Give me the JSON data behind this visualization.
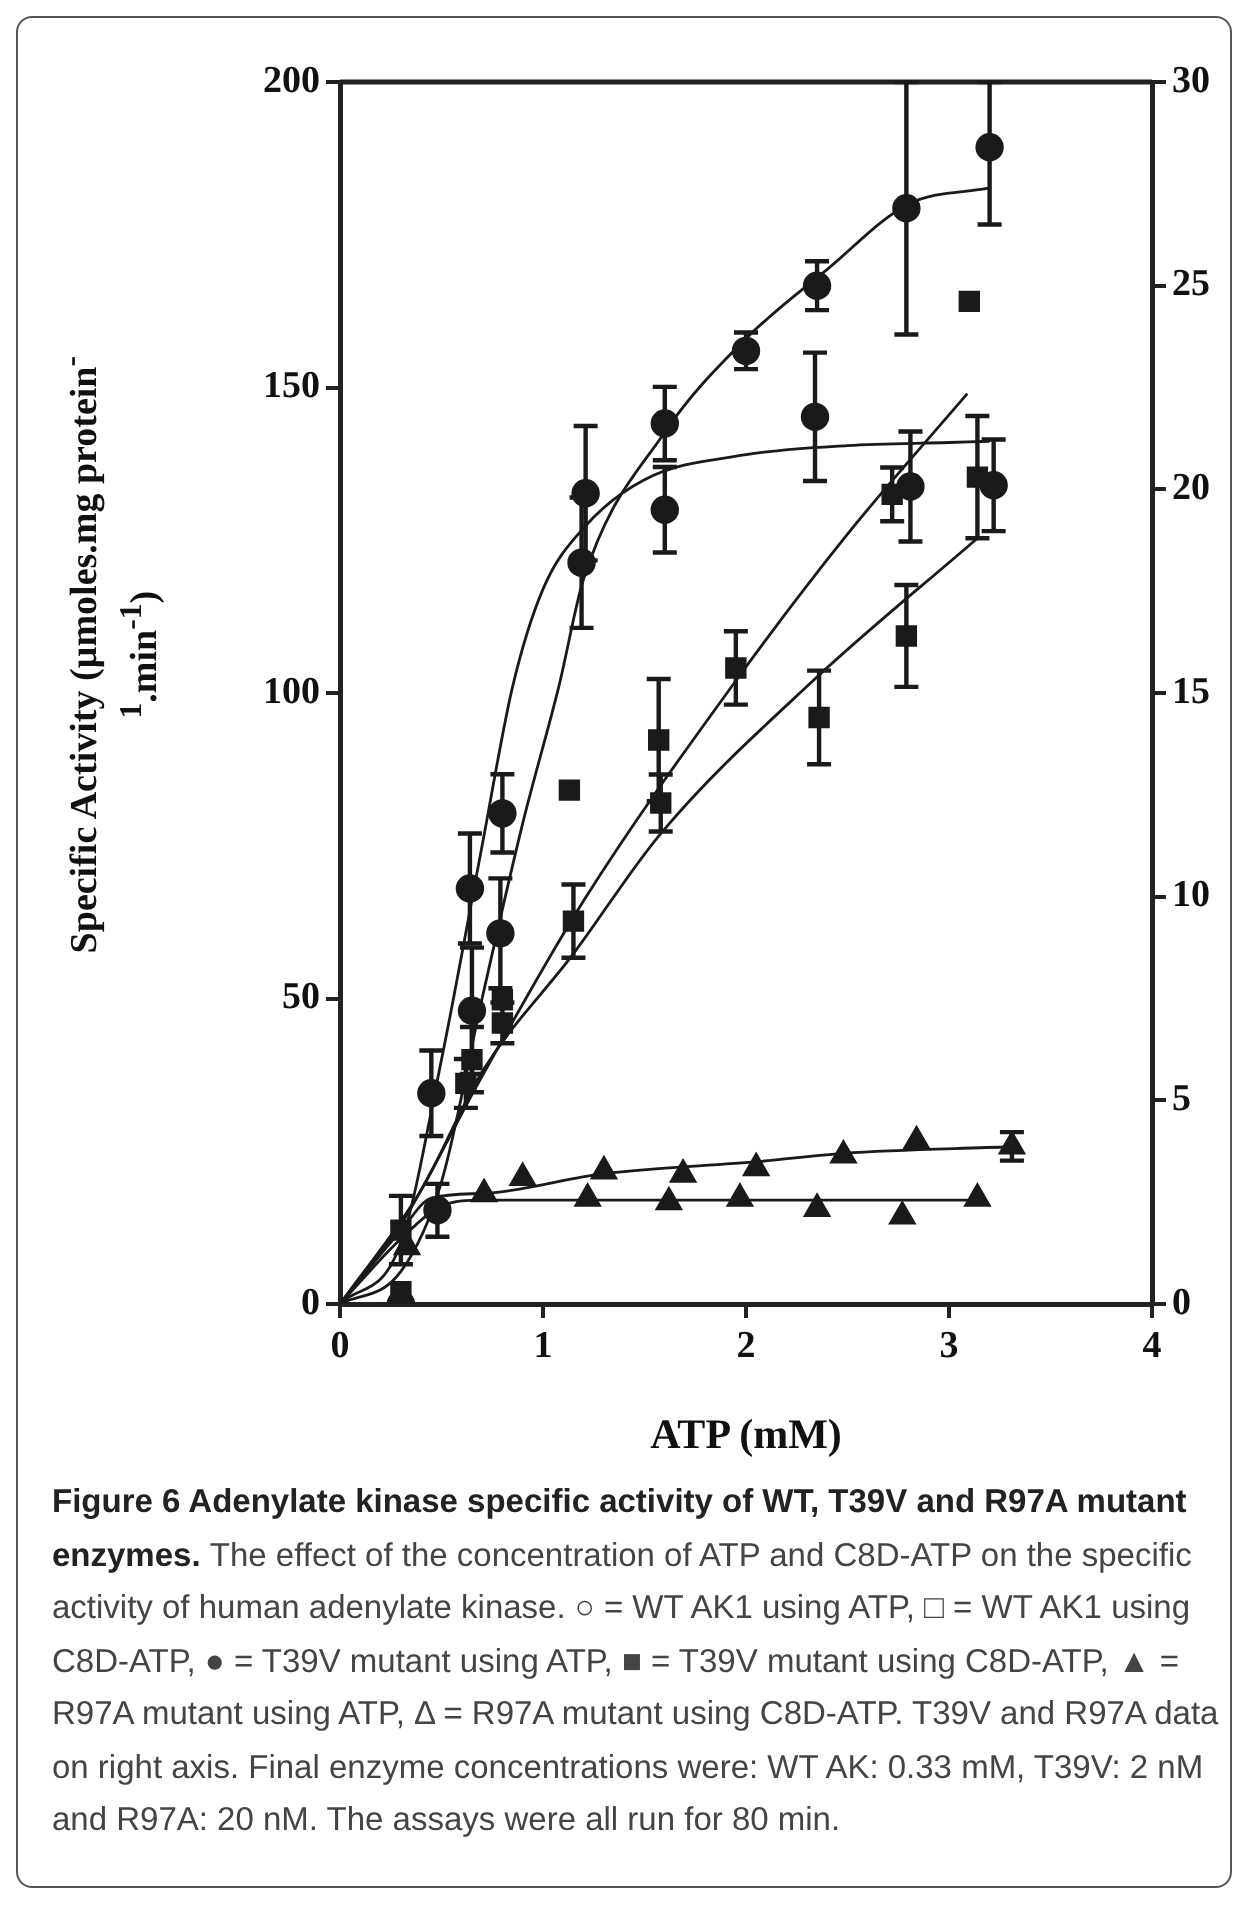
{
  "chart_data": {
    "type": "scatter",
    "xlabel": "ATP (mM)",
    "ylabel": "Specific Activity (µmoles.mg protein$^{-1}$.min$^{-1}$)",
    "xlim": [
      0,
      4
    ],
    "xticks": [
      0,
      1,
      2,
      3,
      4
    ],
    "ylim": [
      0,
      200
    ],
    "yticks": [
      0,
      50,
      100,
      150,
      200
    ],
    "y2lim": [
      0,
      30
    ],
    "y2ticks": [
      0,
      5,
      10,
      15,
      20,
      25,
      30
    ],
    "grid": false,
    "legend": false,
    "series": [
      {
        "type": "scatter",
        "marker": "circle",
        "color": "#1a1a1a",
        "x": [
          0.45,
          0.64,
          0.8,
          1.21,
          1.6,
          2.34,
          2.81,
          3.22
        ],
        "values": [
          34.5,
          68,
          80.3,
          132.7,
          144.1,
          145.2,
          133.8,
          134
        ],
        "errors": [
          7,
          9,
          6.4,
          11,
          6,
          10.5,
          9,
          7.5
        ]
      },
      {
        "type": "scatter",
        "marker": "square",
        "color": "#1a1a1a",
        "x": [
          0.3,
          0.45,
          0.62,
          0.8,
          1.13,
          1.57,
          1.95,
          2.72,
          3.1
        ],
        "values": [
          12.1,
          null,
          36.1,
          49.8,
          84.1,
          92.3,
          104.1,
          132.5,
          164.1
        ],
        "errors": [
          5.6,
          null,
          4,
          null,
          null,
          10,
          6,
          4.4,
          null
        ]
      },
      {
        "type": "scatter",
        "marker": "circle",
        "axis": "y2",
        "color": "#1a1a1a",
        "x": [
          0.3,
          0.48,
          0.65,
          0.79,
          1.19,
          1.6,
          2.0,
          2.35,
          2.79,
          3.2
        ],
        "values": [
          0,
          2.3,
          7.2,
          9.1,
          18.2,
          19.5,
          23.4,
          25.0,
          26.9,
          28.4
        ],
        "errors": [
          null,
          0.65,
          1.55,
          1.35,
          1.6,
          1.05,
          0.45,
          0.6,
          3.1,
          [
            26.5,
            30
          ]
        ]
      },
      {
        "type": "scatter",
        "marker": "square",
        "axis": "y2",
        "color": "#1a1a1a",
        "x": [
          0.3,
          0.46,
          0.65,
          0.8,
          1.15,
          1.58,
          2.36,
          2.79,
          3.14
        ],
        "values": [
          0.3,
          null,
          6.0,
          6.9,
          9.4,
          12.3,
          14.4,
          16.4,
          20.3
        ],
        "errors": [
          null,
          null,
          0.8,
          0.5,
          0.9,
          0.7,
          1.15,
          1.25,
          1.5
        ]
      },
      {
        "type": "scatter",
        "marker": "triangle",
        "axis": "y2",
        "color": "#1a1a1a",
        "x": [
          0.33,
          1.22,
          1.62,
          1.97,
          2.35,
          2.77,
          3.14
        ],
        "values": [
          1.4,
          2.59,
          2.5,
          2.59,
          2.34,
          2.15,
          2.59
        ]
      },
      {
        "type": "scatter",
        "marker": "triangle",
        "axis": "y2",
        "color": "#1a1a1a",
        "x": [
          0.71,
          0.9,
          1.3,
          1.69,
          2.05,
          2.48,
          2.84,
          3.31
        ],
        "values": [
          2.7,
          3.1,
          3.26,
          3.18,
          3.34,
          3.65,
          4.0,
          3.87
        ],
        "errors": [
          null,
          null,
          null,
          null,
          null,
          null,
          null,
          0.35
        ]
      },
      {
        "type": "line",
        "marker": "none",
        "color": "#1a1a1a",
        "x": [
          0,
          0.3,
          0.5,
          0.7,
          0.85,
          1.0,
          1.2,
          1.5,
          2.0,
          2.5,
          3.0,
          3.2
        ],
        "values": [
          0,
          10,
          40,
          75,
          101,
          117,
          127,
          134.9,
          139,
          140.5,
          141,
          141.2
        ]
      },
      {
        "type": "line",
        "marker": "none",
        "color": "#1a1a1a",
        "x": [
          0,
          0.3,
          0.69,
          1.2,
          1.95,
          2.5,
          3.09
        ],
        "values": [
          0,
          13,
          36.7,
          66,
          102,
          126,
          149
        ]
      },
      {
        "type": "line",
        "marker": "none",
        "axis": "y2",
        "color": "#1a1a1a",
        "x": [
          0,
          0.3,
          0.5,
          0.7,
          0.9,
          1.08,
          1.2,
          1.6,
          2.0,
          2.4,
          2.8,
          3.2
        ],
        "values": [
          0,
          0.8,
          3,
          7.5,
          11.8,
          15.2,
          17.8,
          21.4,
          23.7,
          25.4,
          27.0,
          27.4
        ]
      },
      {
        "type": "line",
        "marker": "none",
        "axis": "y2",
        "color": "#1a1a1a",
        "x": [
          0,
          0.4,
          0.7,
          1.15,
          1.58,
          2.33,
          3.14
        ],
        "values": [
          0,
          2.8,
          5.7,
          8.6,
          11.55,
          15.3,
          18.8
        ]
      },
      {
        "type": "line",
        "marker": "none",
        "axis": "y2",
        "color": "#1a1a1a",
        "x": [
          0,
          0.3,
          0.5,
          0.7,
          3.14
        ],
        "values": [
          0,
          1.6,
          2.4,
          2.55,
          2.55
        ]
      },
      {
        "type": "line",
        "marker": "none",
        "axis": "y2",
        "color": "#1a1a1a",
        "x": [
          0,
          0.3,
          0.45,
          0.72,
          1.3,
          2.07,
          2.48,
          3.3
        ],
        "values": [
          0,
          1.8,
          2.6,
          2.72,
          3.2,
          3.5,
          3.7,
          3.86
        ]
      }
    ],
    "annotations": [
      "Figure 6 Adenylate kinase specific activity of WT, T39V and R97A mutant enzymes.",
      "The effect of the concentration of ATP and C8D-ATP on the specific activity of human adenylate kinase. ○ = WT AK1 using ATP, □ = WT AK1 using C8D-ATP, ● = T39V mutant using ATP, ■ = T39V mutant using C8D-ATP, ▲ = R97A mutant using ATP, Δ = R97A mutant using C8D-ATP. T39V and R97A data on right axis. Final enzyme concentrations were: WT AK: 0.33 mM, T39V: 2 nM and R97A: 20 nM. The assays were all run for 80 min."
    ]
  }
}
